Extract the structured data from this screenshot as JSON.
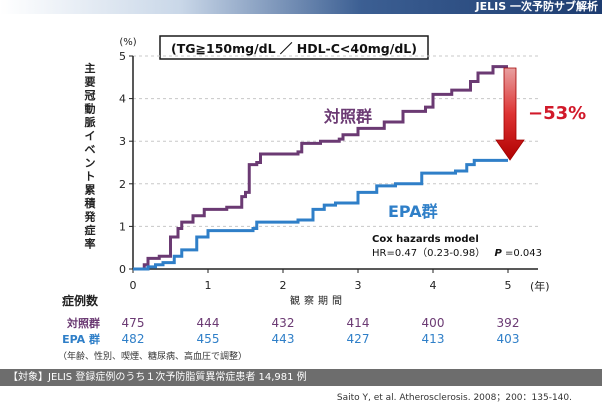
{
  "header": {
    "title": "JELIS 一次予防サブ解析"
  },
  "chart_data": {
    "type": "line",
    "condition": "(TG≧150mg/dL ／ HDL-C<40mg/dL)",
    "ylabel": "主要冠動脈イベント累積発症率",
    "yunit": "(%)",
    "xlabel": "観察期間",
    "xunit": "(年)",
    "xlim": [
      0,
      5.4
    ],
    "ylim": [
      0,
      5
    ],
    "xticks": [
      "0",
      "1",
      "2",
      "3",
      "4",
      "5"
    ],
    "yticks": [
      "0",
      "1",
      "2",
      "3",
      "4",
      "5"
    ],
    "series": [
      {
        "name": "対照群",
        "color": "#6b3a73",
        "points": [
          [
            0,
            0
          ],
          [
            0.15,
            0.1
          ],
          [
            0.2,
            0.25
          ],
          [
            0.35,
            0.3
          ],
          [
            0.5,
            0.75
          ],
          [
            0.6,
            0.95
          ],
          [
            0.65,
            1.1
          ],
          [
            0.8,
            1.25
          ],
          [
            0.95,
            1.4
          ],
          [
            1.25,
            1.45
          ],
          [
            1.45,
            1.7
          ],
          [
            1.5,
            1.8
          ],
          [
            1.55,
            2.45
          ],
          [
            1.65,
            2.5
          ],
          [
            1.7,
            2.7
          ],
          [
            2.2,
            2.75
          ],
          [
            2.25,
            2.95
          ],
          [
            2.5,
            3.0
          ],
          [
            2.75,
            3.05
          ],
          [
            2.8,
            3.15
          ],
          [
            3.0,
            3.3
          ],
          [
            3.35,
            3.45
          ],
          [
            3.6,
            3.7
          ],
          [
            3.9,
            3.8
          ],
          [
            4.0,
            4.1
          ],
          [
            4.25,
            4.2
          ],
          [
            4.5,
            4.4
          ],
          [
            4.6,
            4.6
          ],
          [
            4.8,
            4.75
          ],
          [
            5.0,
            4.75
          ]
        ]
      },
      {
        "name": "EPA群",
        "color": "#2f7fc8",
        "points": [
          [
            0,
            0
          ],
          [
            0.2,
            0.05
          ],
          [
            0.3,
            0.1
          ],
          [
            0.4,
            0.15
          ],
          [
            0.55,
            0.3
          ],
          [
            0.65,
            0.45
          ],
          [
            0.85,
            0.75
          ],
          [
            1.0,
            0.9
          ],
          [
            1.6,
            0.95
          ],
          [
            1.65,
            1.1
          ],
          [
            2.2,
            1.15
          ],
          [
            2.4,
            1.4
          ],
          [
            2.55,
            1.5
          ],
          [
            2.7,
            1.55
          ],
          [
            3.0,
            1.8
          ],
          [
            3.25,
            1.95
          ],
          [
            3.5,
            2.0
          ],
          [
            3.85,
            2.25
          ],
          [
            4.3,
            2.3
          ],
          [
            4.45,
            2.45
          ],
          [
            4.55,
            2.55
          ],
          [
            5.0,
            2.55
          ]
        ]
      }
    ],
    "annotation": {
      "reduction": "−53%"
    },
    "stats": {
      "model": "Cox hazards model",
      "result": "HR=0.47（0.23-0.98）",
      "p_label": "P",
      "p_value": "=0.043"
    }
  },
  "at_risk": {
    "title": "症例数",
    "rows": [
      {
        "label": "対照群",
        "values": [
          "475",
          "444",
          "432",
          "414",
          "400",
          "392"
        ],
        "color": "#6b3a73"
      },
      {
        "label": "EPA 群",
        "values": [
          "482",
          "455",
          "443",
          "427",
          "413",
          "403"
        ],
        "color": "#2f7fc8"
      }
    ],
    "note": "（年齢、性別、喫煙、糖尿病、高血圧で調整）"
  },
  "footer": {
    "text": "【対象】JELIS 登録症例のうち１次予防脂質異常症患者 14,981 例"
  },
  "citation": "Saito Y, et al. Atherosclerosis. 2008；200：135-140."
}
